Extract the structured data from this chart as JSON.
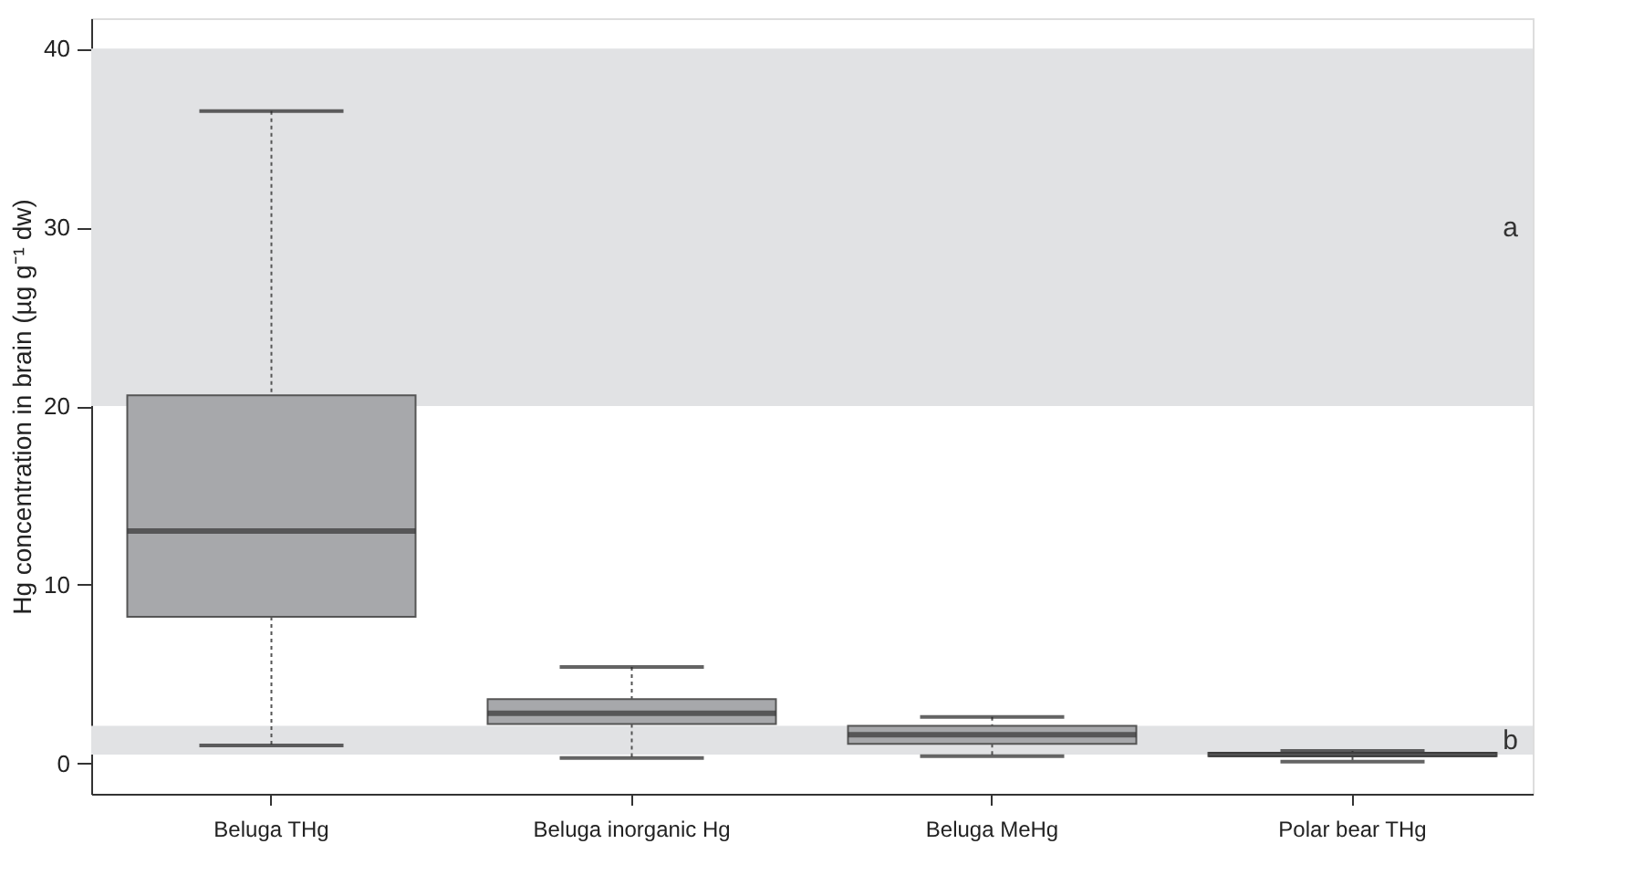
{
  "chart_data": {
    "type": "box",
    "ylabel": "Hg concentration in brain (µg g⁻¹ dw)",
    "categories": [
      "Beluga THg",
      "Beluga inorganic Hg",
      "Beluga MeHg",
      "Polar bear THg"
    ],
    "boxes": [
      {
        "low": 1.0,
        "q1": 8.2,
        "median": 13.0,
        "q3": 20.6,
        "high": 36.5
      },
      {
        "low": 0.3,
        "q1": 2.2,
        "median": 2.8,
        "q3": 3.6,
        "high": 5.4
      },
      {
        "low": 0.4,
        "q1": 1.1,
        "median": 1.6,
        "q3": 2.1,
        "high": 2.6
      },
      {
        "low": 0.1,
        "q1": 0.4,
        "median": 0.5,
        "q3": 0.6,
        "high": 0.7
      }
    ],
    "color": "#a7a8ab",
    "ylim": [
      -1.7,
      41.7
    ],
    "yticks": [
      0,
      10,
      20,
      30,
      40
    ],
    "grid": false,
    "bands": [
      {
        "axis": "y",
        "from": 20,
        "to": 40,
        "label": "a",
        "color": "#e1e2e4"
      },
      {
        "axis": "y",
        "from": 0.5,
        "to": 2.1,
        "label": "b",
        "color": "#e1e2e4"
      }
    ]
  }
}
